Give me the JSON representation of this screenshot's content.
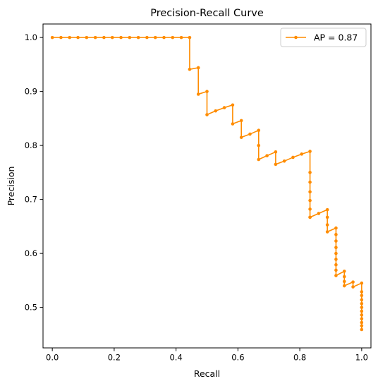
{
  "chart_data": {
    "type": "line",
    "title": "Precision-Recall Curve",
    "xlabel": "Recall",
    "ylabel": "Precision",
    "xlim": [
      -0.03,
      1.03
    ],
    "ylim": [
      0.425,
      1.025
    ],
    "xticks": [
      0.0,
      0.2,
      0.4,
      0.6,
      0.8,
      1.0
    ],
    "xtick_labels": [
      "0.0",
      "0.2",
      "0.4",
      "0.6",
      "0.8",
      "1.0"
    ],
    "yticks": [
      0.5,
      0.6,
      0.7,
      0.8,
      0.9,
      1.0
    ],
    "ytick_labels": [
      "0.5",
      "0.6",
      "0.7",
      "0.8",
      "0.9",
      "1.0"
    ],
    "grid": false,
    "legend_position": "top-right",
    "series": [
      {
        "name": "AP = 0.87",
        "color": "#ff8c00",
        "marker": "circle",
        "x": [
          0.0,
          0.028,
          0.056,
          0.083,
          0.111,
          0.139,
          0.167,
          0.194,
          0.222,
          0.25,
          0.278,
          0.306,
          0.333,
          0.361,
          0.389,
          0.417,
          0.444,
          0.444,
          0.472,
          0.472,
          0.5,
          0.5,
          0.528,
          0.556,
          0.583,
          0.583,
          0.611,
          0.611,
          0.639,
          0.667,
          0.667,
          0.667,
          0.694,
          0.722,
          0.722,
          0.75,
          0.778,
          0.806,
          0.833,
          0.833,
          0.833,
          0.833,
          0.833,
          0.833,
          0.833,
          0.833,
          0.861,
          0.889,
          0.889,
          0.889,
          0.889,
          0.917,
          0.917,
          0.917,
          0.917,
          0.917,
          0.917,
          0.917,
          0.917,
          0.917,
          0.944,
          0.944,
          0.944,
          0.944,
          0.972,
          0.972,
          1.0,
          1.0,
          1.0,
          1.0,
          1.0,
          1.0,
          1.0,
          1.0,
          1.0,
          1.0,
          1.0,
          1.0
        ],
        "y": [
          1.0,
          1.0,
          1.0,
          1.0,
          1.0,
          1.0,
          1.0,
          1.0,
          1.0,
          1.0,
          1.0,
          1.0,
          1.0,
          1.0,
          1.0,
          1.0,
          1.0,
          0.941,
          0.944,
          0.895,
          0.9,
          0.857,
          0.864,
          0.87,
          0.875,
          0.84,
          0.846,
          0.815,
          0.821,
          0.828,
          0.8,
          0.774,
          0.781,
          0.788,
          0.765,
          0.771,
          0.778,
          0.784,
          0.789,
          0.75,
          0.732,
          0.714,
          0.698,
          0.682,
          0.667,
          0.667,
          0.674,
          0.681,
          0.667,
          0.653,
          0.64,
          0.647,
          0.635,
          0.623,
          0.611,
          0.6,
          0.589,
          0.579,
          0.569,
          0.559,
          0.567,
          0.557,
          0.548,
          0.54,
          0.547,
          0.538,
          0.545,
          0.529,
          0.522,
          0.514,
          0.507,
          0.5,
          0.493,
          0.486,
          0.479,
          0.472,
          0.466,
          0.459
        ]
      }
    ]
  }
}
